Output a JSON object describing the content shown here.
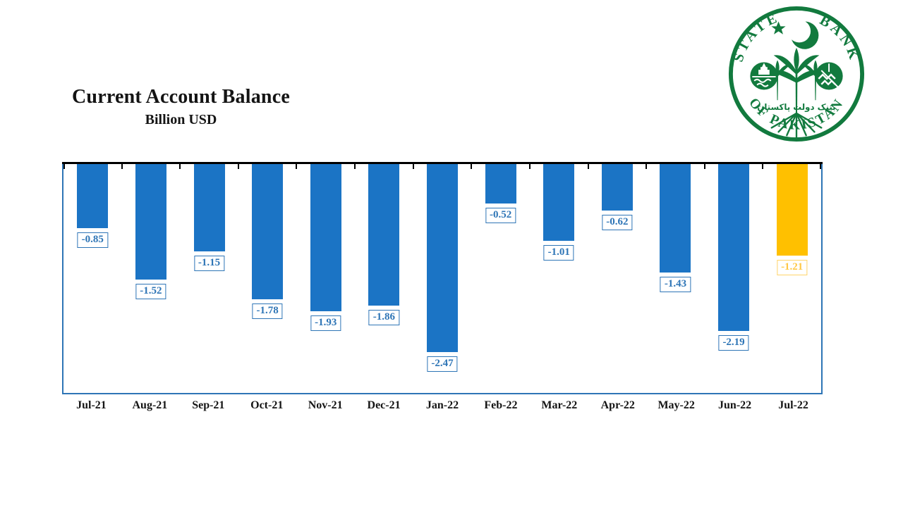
{
  "header": {
    "title": "Current Account Balance",
    "subtitle": "Billion USD"
  },
  "logo": {
    "name": "State Bank of Pakistan seal",
    "text_state": "STATE",
    "text_bank": "BANK",
    "text_bottom": "OF PAKISTAN",
    "urdu_text": "بینک دولت پاکستان",
    "green": "#127A3E"
  },
  "chart_data": {
    "type": "bar",
    "title": "Current Account Balance",
    "ylabel": "Billion USD",
    "categories": [
      "Jul-21",
      "Aug-21",
      "Sep-21",
      "Oct-21",
      "Nov-21",
      "Dec-21",
      "Jan-22",
      "Feb-22",
      "Mar-22",
      "Apr-22",
      "May-22",
      "Jun-22",
      "Jul-22"
    ],
    "values": [
      -0.85,
      -1.52,
      -1.15,
      -1.78,
      -1.93,
      -1.86,
      -2.47,
      -0.52,
      -1.01,
      -0.62,
      -1.43,
      -2.19,
      -1.21
    ],
    "data_labels": [
      "-0.85",
      "-1.52",
      "-1.15",
      "-1.78",
      "-1.93",
      "-1.86",
      "-2.47",
      "-0.52",
      "-1.01",
      "-0.62",
      "-1.43",
      "-2.19",
      "-1.21"
    ],
    "ylim": [
      -3,
      0
    ],
    "axis_position": "top",
    "grid": false,
    "legend": false,
    "bar_color": "#1B74C5",
    "highlight_index": 12,
    "highlight_color": "#FFC000",
    "label_text_color": "#2E75B6",
    "label_border_color": "#2E75B6",
    "highlight_label_text_color": "#FFC845",
    "highlight_label_border_color": "#FFD469",
    "frame_color": "#2E75B6",
    "axis_color": "#000000"
  }
}
